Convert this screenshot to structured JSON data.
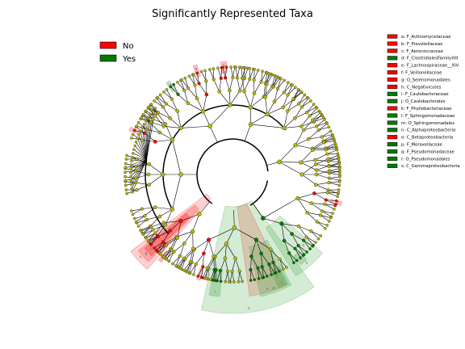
{
  "title": "Significantly Represented Taxa",
  "colors": {
    "red": "#ff0000",
    "green": "#007a00",
    "node": "#b8b800",
    "node_edge": "#555500",
    "red_shade": "#ff0000",
    "green_shade": "#2a9a2a"
  },
  "legend": [
    {
      "label": "No",
      "color": "#ff0000"
    },
    {
      "label": "Yes",
      "color": "#007a00"
    }
  ],
  "taxa_key": [
    {
      "label": "a: F_Actinomycetaceae",
      "color": "#ff0000"
    },
    {
      "label": "b: F_Prevotellaceae",
      "color": "#ff0000"
    },
    {
      "label": "c: F_Aerococcaceae",
      "color": "#ff0000"
    },
    {
      "label": "d: F_ClostridialesFamilyXIII",
      "color": "#007a00"
    },
    {
      "label": "e: F_Lachnospiraceae__XIV",
      "color": "#ff0000"
    },
    {
      "label": "f: F_Veillonellaceae",
      "color": "#ff0000"
    },
    {
      "label": "g: O_Selenomonadales",
      "color": "#ff0000"
    },
    {
      "label": "h: C_Negativicutes",
      "color": "#ff0000"
    },
    {
      "label": "i: F_Caulobacteraceae",
      "color": "#007a00"
    },
    {
      "label": "j: O_Caulobacterales",
      "color": "#007a00"
    },
    {
      "label": "k: F_Phyllobacteriaceae",
      "color": "#ff0000"
    },
    {
      "label": "l: F_Sphingomonadaceae",
      "color": "#007a00"
    },
    {
      "label": "m: O_Sphingomonadales",
      "color": "#007a00"
    },
    {
      "label": "n: C_Alphaproteobacteria",
      "color": "#007a00"
    },
    {
      "label": "o: C_Betaproteobacteria",
      "color": "#ff0000"
    },
    {
      "label": "p: F_Moraxellaceae",
      "color": "#007a00"
    },
    {
      "label": "q: F_Pseudomonadaceae",
      "color": "#007a00"
    },
    {
      "label": "r: O_Pseudomonadales",
      "color": "#007a00"
    },
    {
      "label": "s: C_Gammaproteobacteria",
      "color": "#007a00"
    }
  ],
  "clade_labels": [
    "a",
    "b",
    "c",
    "d",
    "e",
    "f",
    "g",
    "h",
    "i",
    "j",
    "k",
    "l",
    "m",
    "n",
    "o",
    "p",
    "q",
    "r",
    "s"
  ]
}
